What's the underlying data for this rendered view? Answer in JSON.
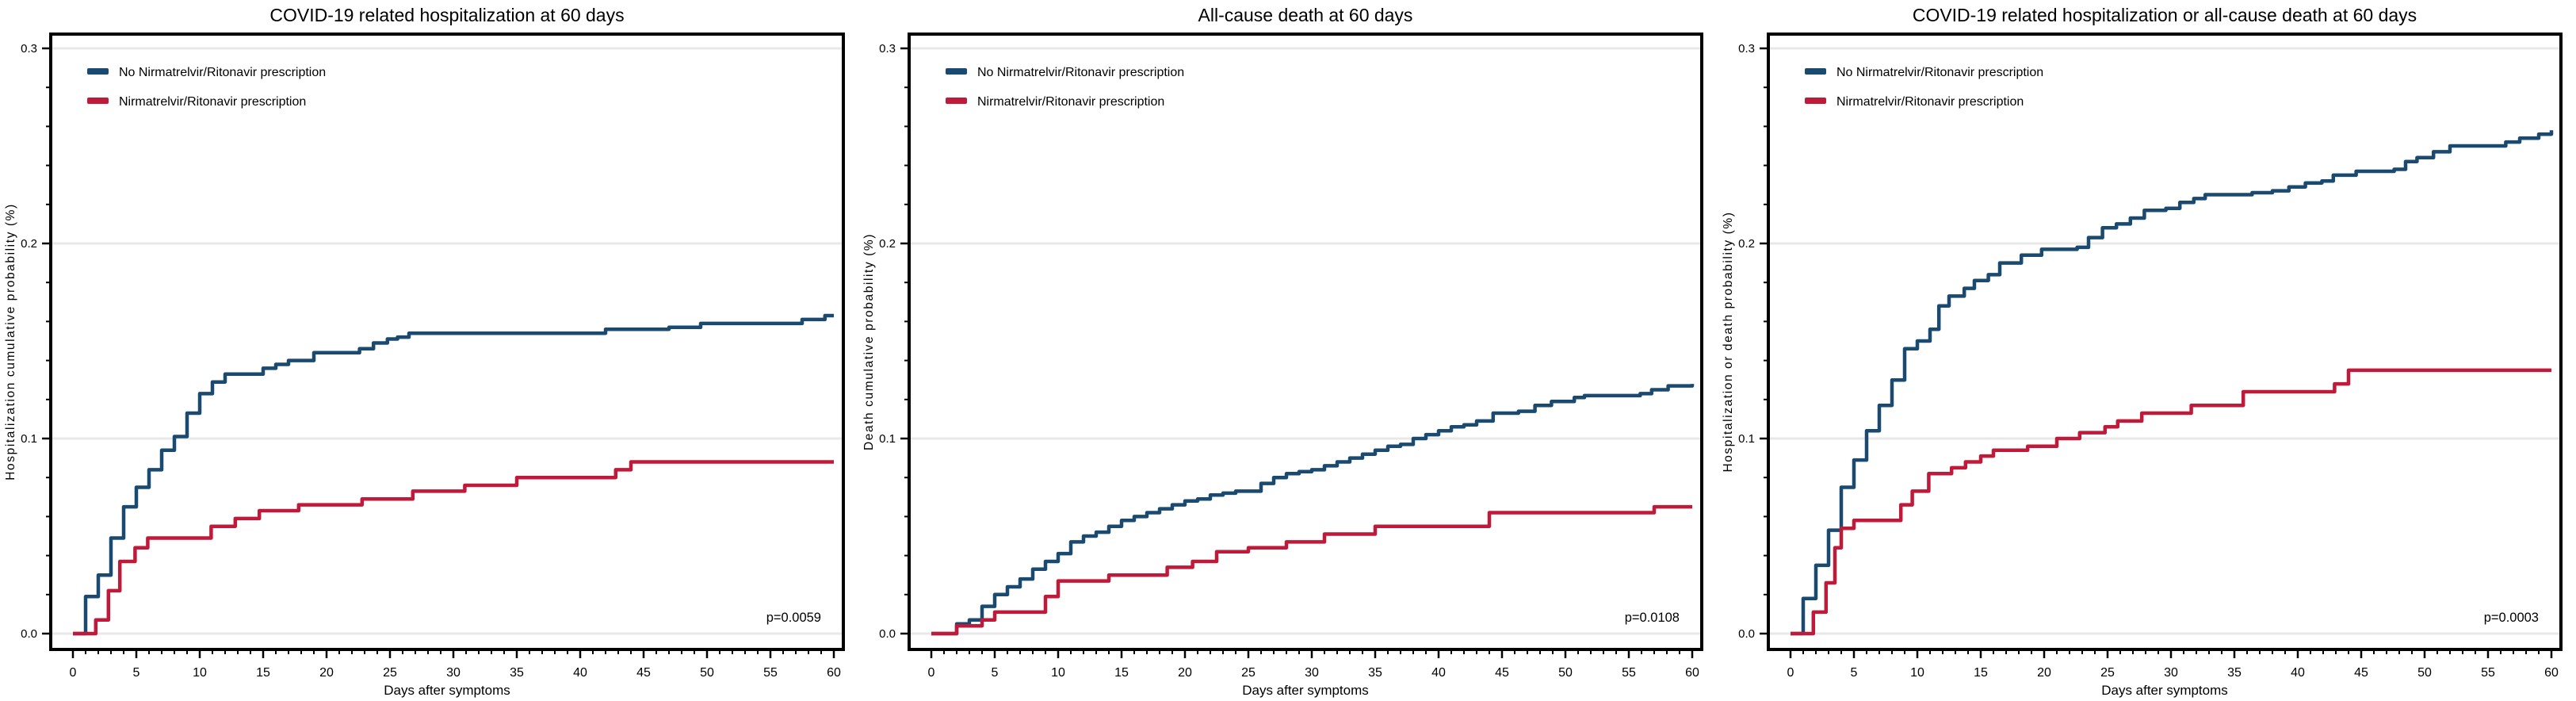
{
  "figure": {
    "background": "#ffffff",
    "grid_color": "#e8e8e8",
    "axis_color": "#000000",
    "legend": [
      {
        "label": "No Nirmatrelvir/Ritonavir prescription",
        "color": "#1a4a70"
      },
      {
        "label": "Nirmatrelvir/Ritonavir prescription",
        "color": "#c01a3a"
      }
    ],
    "xlabel": "Days after symptoms"
  },
  "chart_data": [
    {
      "type": "line",
      "step": true,
      "title": "COVID-19 related hospitalization at 60 days",
      "xlabel": "Days after symptoms",
      "ylabel": "Hospitalization cumulative probability (%)",
      "xlim": [
        0,
        60
      ],
      "ylim": [
        0,
        0.3
      ],
      "x_ticks": [
        0,
        5,
        10,
        15,
        20,
        25,
        30,
        35,
        40,
        45,
        50,
        55,
        60
      ],
      "x_minor_step": 1,
      "y_ticks": [
        0,
        0.1,
        0.2,
        0.3
      ],
      "y_minor_step": 0.02,
      "grid": "horizontal-major",
      "legend_position": "top-left",
      "p_value": "p=0.0059",
      "series": [
        {
          "name": "No Nirmatrelvir/Ritonavir prescription",
          "color": "#1a4a70",
          "points": [
            [
              0,
              0
            ],
            [
              1,
              0.019
            ],
            [
              2,
              0.03
            ],
            [
              3,
              0.049
            ],
            [
              4,
              0.065
            ],
            [
              5,
              0.075
            ],
            [
              6,
              0.084
            ],
            [
              7,
              0.094
            ],
            [
              8,
              0.101
            ],
            [
              9,
              0.113
            ],
            [
              10,
              0.123
            ],
            [
              11,
              0.129
            ],
            [
              12,
              0.133
            ],
            [
              15,
              0.136
            ],
            [
              16,
              0.138
            ],
            [
              17,
              0.14
            ],
            [
              19,
              0.144
            ],
            [
              22.6,
              0.146
            ],
            [
              23.7,
              0.149
            ],
            [
              24.8,
              0.151
            ],
            [
              25.6,
              0.152
            ],
            [
              26.5,
              0.154
            ],
            [
              42,
              0.156
            ],
            [
              47,
              0.157
            ],
            [
              49.5,
              0.159
            ],
            [
              57.5,
              0.161
            ],
            [
              59.3,
              0.163
            ],
            [
              60,
              0.163
            ]
          ]
        },
        {
          "name": "Nirmatrelvir/Ritonavir prescription",
          "color": "#c01a3a",
          "points": [
            [
              0,
              0
            ],
            [
              1.8,
              0.007
            ],
            [
              2.8,
              0.022
            ],
            [
              3.7,
              0.037
            ],
            [
              4.9,
              0.044
            ],
            [
              5.9,
              0.049
            ],
            [
              10.9,
              0.055
            ],
            [
              12.8,
              0.059
            ],
            [
              14.7,
              0.063
            ],
            [
              17.8,
              0.066
            ],
            [
              22.8,
              0.069
            ],
            [
              26.8,
              0.073
            ],
            [
              30.9,
              0.076
            ],
            [
              35,
              0.08
            ],
            [
              42.8,
              0.084
            ],
            [
              44,
              0.088
            ],
            [
              60,
              0.088
            ]
          ]
        }
      ]
    },
    {
      "type": "line",
      "step": true,
      "title": "All-cause death at 60 days",
      "xlabel": "Days after symptoms",
      "ylabel": "Death cumulative probability (%)",
      "xlim": [
        0,
        60
      ],
      "ylim": [
        0,
        0.3
      ],
      "x_ticks": [
        0,
        5,
        10,
        15,
        20,
        25,
        30,
        35,
        40,
        45,
        50,
        55,
        60
      ],
      "x_minor_step": 1,
      "y_ticks": [
        0,
        0.1,
        0.2,
        0.3
      ],
      "y_minor_step": 0.02,
      "grid": "horizontal-major",
      "legend_position": "top-left",
      "p_value": "p=0.0108",
      "series": [
        {
          "name": "No Nirmatrelvir/Ritonavir prescription",
          "color": "#1a4a70",
          "points": [
            [
              0,
              0
            ],
            [
              2,
              0.005
            ],
            [
              3,
              0.007
            ],
            [
              4,
              0.014
            ],
            [
              5,
              0.02
            ],
            [
              6,
              0.024
            ],
            [
              7,
              0.028
            ],
            [
              8,
              0.033
            ],
            [
              9,
              0.037
            ],
            [
              10,
              0.041
            ],
            [
              11,
              0.047
            ],
            [
              12,
              0.05
            ],
            [
              13,
              0.052
            ],
            [
              14,
              0.055
            ],
            [
              15,
              0.058
            ],
            [
              16,
              0.06
            ],
            [
              17,
              0.062
            ],
            [
              18,
              0.064
            ],
            [
              19,
              0.066
            ],
            [
              20,
              0.068
            ],
            [
              21,
              0.069
            ],
            [
              22,
              0.071
            ],
            [
              23,
              0.072
            ],
            [
              24,
              0.073
            ],
            [
              26,
              0.077
            ],
            [
              27,
              0.08
            ],
            [
              28,
              0.082
            ],
            [
              29,
              0.083
            ],
            [
              30,
              0.084
            ],
            [
              31,
              0.086
            ],
            [
              32,
              0.088
            ],
            [
              33,
              0.09
            ],
            [
              34,
              0.092
            ],
            [
              35,
              0.094
            ],
            [
              36,
              0.096
            ],
            [
              37,
              0.097
            ],
            [
              38,
              0.1
            ],
            [
              39,
              0.102
            ],
            [
              40,
              0.104
            ],
            [
              41,
              0.106
            ],
            [
              42,
              0.107
            ],
            [
              43,
              0.109
            ],
            [
              44.3,
              0.113
            ],
            [
              46.3,
              0.114
            ],
            [
              47.6,
              0.117
            ],
            [
              48.9,
              0.119
            ],
            [
              50.7,
              0.121
            ],
            [
              51.5,
              0.122
            ],
            [
              55.9,
              0.123
            ],
            [
              56.8,
              0.125
            ],
            [
              58.1,
              0.127
            ],
            [
              60,
              0.128
            ]
          ]
        },
        {
          "name": "Nirmatrelvir/Ritonavir prescription",
          "color": "#c01a3a",
          "points": [
            [
              0,
              0
            ],
            [
              2,
              0.004
            ],
            [
              4,
              0.007
            ],
            [
              5,
              0.011
            ],
            [
              9,
              0.019
            ],
            [
              10,
              0.027
            ],
            [
              14,
              0.03
            ],
            [
              18.6,
              0.034
            ],
            [
              20.6,
              0.037
            ],
            [
              22.5,
              0.042
            ],
            [
              25,
              0.044
            ],
            [
              28,
              0.047
            ],
            [
              31,
              0.051
            ],
            [
              35,
              0.055
            ],
            [
              44,
              0.062
            ],
            [
              57,
              0.065
            ],
            [
              60,
              0.065
            ]
          ]
        }
      ]
    },
    {
      "type": "line",
      "step": true,
      "title": "COVID-19 related hospitalization or all-cause death at 60 days",
      "xlabel": "Days after symptoms",
      "ylabel": "Hospitalization or death probability (%)",
      "xlim": [
        0,
        60
      ],
      "ylim": [
        0,
        0.3
      ],
      "x_ticks": [
        0,
        5,
        10,
        15,
        20,
        25,
        30,
        35,
        40,
        45,
        50,
        55,
        60
      ],
      "x_minor_step": 1,
      "y_ticks": [
        0,
        0.1,
        0.2,
        0.3
      ],
      "y_minor_step": 0.02,
      "grid": "horizontal-major",
      "legend_position": "top-left",
      "p_value": "p=0.0003",
      "series": [
        {
          "name": "No Nirmatrelvir/Ritonavir prescription",
          "color": "#1a4a70",
          "points": [
            [
              0,
              0
            ],
            [
              1,
              0.018
            ],
            [
              2,
              0.035
            ],
            [
              3,
              0.053
            ],
            [
              4,
              0.075
            ],
            [
              5,
              0.089
            ],
            [
              6,
              0.104
            ],
            [
              7,
              0.117
            ],
            [
              8,
              0.13
            ],
            [
              9,
              0.146
            ],
            [
              10,
              0.15
            ],
            [
              11,
              0.156
            ],
            [
              11.7,
              0.168
            ],
            [
              12.5,
              0.173
            ],
            [
              13.7,
              0.177
            ],
            [
              14.5,
              0.181
            ],
            [
              15.6,
              0.184
            ],
            [
              16.5,
              0.19
            ],
            [
              18.2,
              0.194
            ],
            [
              19.8,
              0.197
            ],
            [
              22.6,
              0.198
            ],
            [
              23.5,
              0.203
            ],
            [
              24.6,
              0.208
            ],
            [
              25.7,
              0.21
            ],
            [
              26.8,
              0.213
            ],
            [
              27.9,
              0.217
            ],
            [
              29.6,
              0.218
            ],
            [
              30.7,
              0.221
            ],
            [
              31.8,
              0.223
            ],
            [
              32.7,
              0.225
            ],
            [
              36.4,
              0.226
            ],
            [
              38,
              0.227
            ],
            [
              39.3,
              0.229
            ],
            [
              40.6,
              0.231
            ],
            [
              41.9,
              0.232
            ],
            [
              42.8,
              0.235
            ],
            [
              44.6,
              0.237
            ],
            [
              47.6,
              0.238
            ],
            [
              48.5,
              0.242
            ],
            [
              49.4,
              0.244
            ],
            [
              50.7,
              0.247
            ],
            [
              52,
              0.25
            ],
            [
              56.4,
              0.252
            ],
            [
              57.5,
              0.254
            ],
            [
              59,
              0.256
            ],
            [
              60,
              0.258
            ]
          ]
        },
        {
          "name": "Nirmatrelvir/Ritonavir prescription",
          "color": "#c01a3a",
          "points": [
            [
              0,
              0
            ],
            [
              1.8,
              0.011
            ],
            [
              2.8,
              0.026
            ],
            [
              3.5,
              0.044
            ],
            [
              4,
              0.054
            ],
            [
              5,
              0.058
            ],
            [
              8.7,
              0.066
            ],
            [
              9.6,
              0.073
            ],
            [
              10.9,
              0.082
            ],
            [
              12.7,
              0.085
            ],
            [
              13.8,
              0.088
            ],
            [
              15,
              0.091
            ],
            [
              16,
              0.094
            ],
            [
              18.7,
              0.096
            ],
            [
              21,
              0.1
            ],
            [
              22.8,
              0.103
            ],
            [
              24.8,
              0.106
            ],
            [
              25.8,
              0.109
            ],
            [
              27.7,
              0.113
            ],
            [
              31.6,
              0.117
            ],
            [
              35.7,
              0.124
            ],
            [
              42.9,
              0.128
            ],
            [
              44,
              0.135
            ],
            [
              60,
              0.135
            ]
          ]
        }
      ]
    }
  ]
}
